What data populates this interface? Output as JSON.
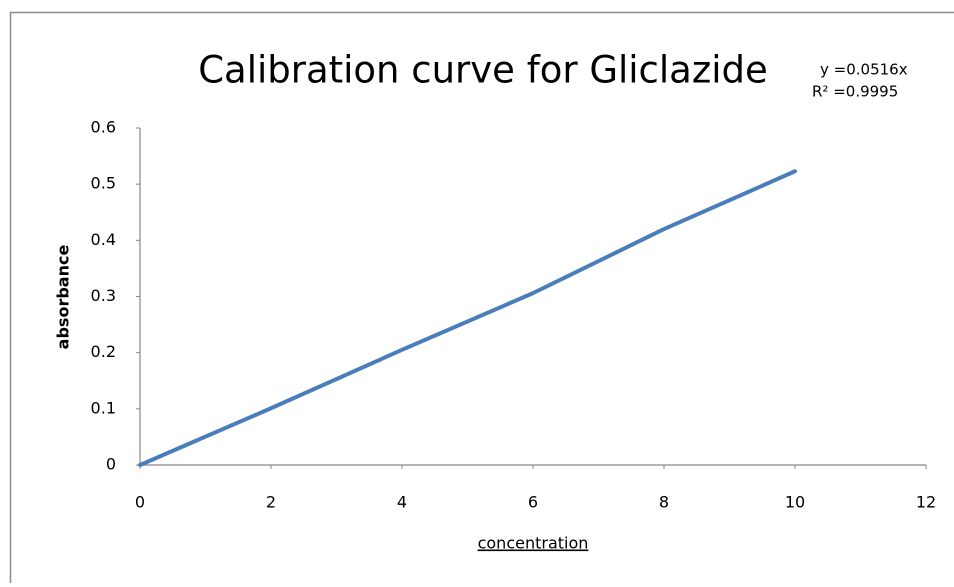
{
  "chart_data": {
    "type": "line",
    "title": "Calibration curve for Gliclazide",
    "annotations": [
      "y =0.0516x",
      "R² =0.9995"
    ],
    "xlabel": "concentration",
    "ylabel": "absorbance",
    "x": [
      0,
      2,
      4,
      6,
      8,
      10
    ],
    "values": [
      0,
      0.101,
      0.205,
      0.306,
      0.42,
      0.523
    ],
    "color": "#4a7ebb",
    "xlim": [
      0,
      12
    ],
    "xticks": [
      0,
      2,
      4,
      6,
      8,
      10,
      12
    ],
    "ylim": [
      0,
      0.6
    ],
    "yticks": [
      0,
      0.1,
      0.2,
      0.3,
      0.4,
      0.5,
      0.6
    ],
    "grid": false
  }
}
